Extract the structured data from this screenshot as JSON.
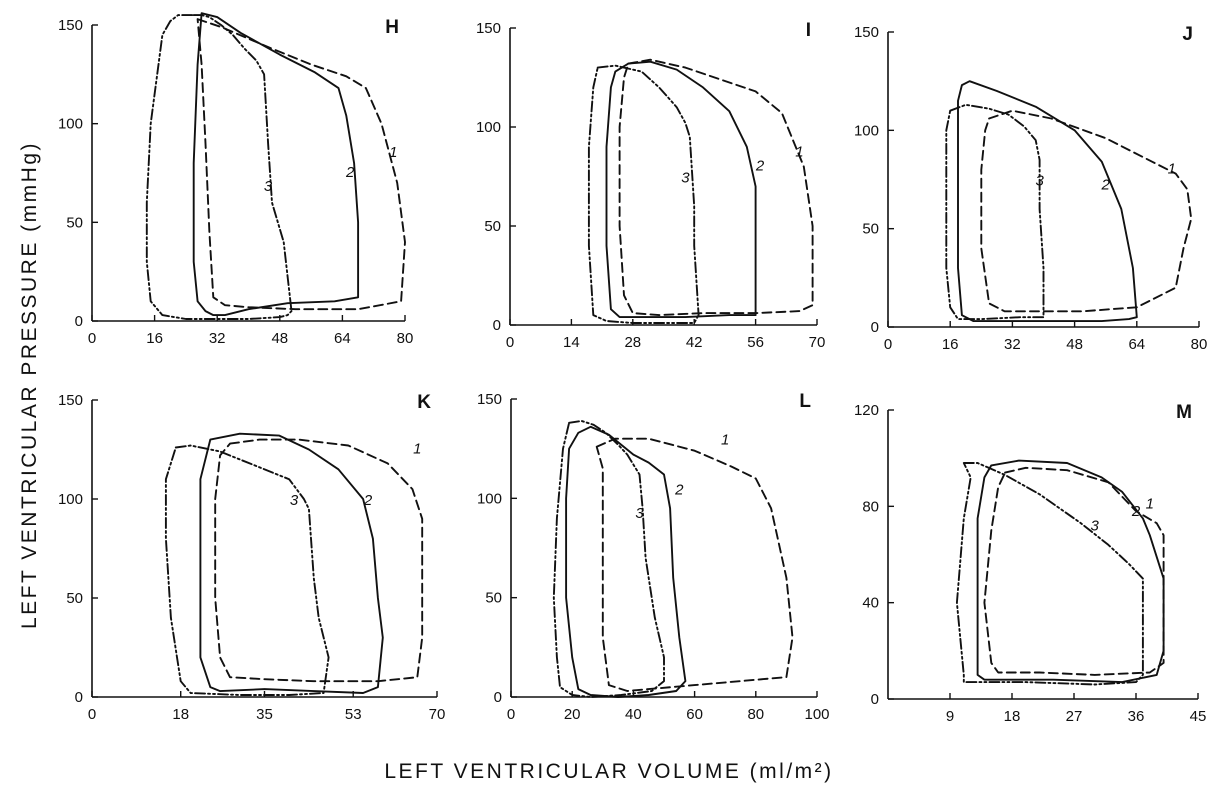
{
  "figure": {
    "ylabel": "LEFT VENTRICULAR PRESSURE (mmHg)",
    "xlabel": "LEFT VENTRICULAR VOLUME (ml/m²)"
  },
  "chart_data": [
    {
      "panel": "H",
      "type": "line",
      "xlim": [
        0,
        80
      ],
      "ylim": [
        0,
        150
      ],
      "xticks": [
        "0",
        "16",
        "32",
        "48",
        "64",
        "80"
      ],
      "yticks": [
        "0",
        "50",
        "100",
        "150"
      ],
      "series": [
        {
          "name": "1",
          "style": "dashed",
          "x": [
            27,
            33,
            46,
            56,
            65,
            70,
            74,
            78,
            80,
            79,
            68,
            52,
            40,
            34,
            31,
            30,
            29,
            28,
            27
          ],
          "y": [
            153,
            149,
            138,
            130,
            124,
            118,
            100,
            70,
            40,
            10,
            6,
            6,
            7,
            8,
            12,
            45,
            90,
            130,
            153
          ]
        },
        {
          "name": "2",
          "style": "solid",
          "x": [
            28,
            32,
            38,
            48,
            57,
            63,
            65,
            67,
            68,
            68,
            62,
            50,
            40,
            34,
            31,
            29,
            27,
            26,
            26,
            27,
            28
          ],
          "y": [
            156,
            154,
            146,
            135,
            126,
            118,
            104,
            80,
            50,
            12,
            10,
            9,
            6,
            3,
            3,
            5,
            10,
            30,
            80,
            130,
            156
          ]
        },
        {
          "name": "3",
          "style": "dashdot",
          "x": [
            26,
            28,
            30,
            33,
            36,
            39,
            42,
            44,
            45,
            46,
            49,
            51,
            50,
            48,
            40,
            32,
            24,
            18,
            15,
            14,
            14,
            15,
            17,
            18,
            20,
            22,
            26
          ],
          "y": [
            155,
            155,
            154,
            150,
            145,
            138,
            132,
            125,
            90,
            60,
            40,
            5,
            3,
            2,
            1,
            1,
            1,
            3,
            10,
            30,
            60,
            100,
            130,
            145,
            152,
            155,
            155
          ]
        }
      ],
      "labels": [
        {
          "text": "1",
          "x": 77,
          "y": 83
        },
        {
          "text": "2",
          "x": 66,
          "y": 73
        },
        {
          "text": "3",
          "x": 45,
          "y": 66
        }
      ]
    },
    {
      "panel": "I",
      "type": "line",
      "xlim": [
        0,
        70
      ],
      "ylim": [
        0,
        150
      ],
      "xticks": [
        "0",
        "14",
        "28",
        "42",
        "56",
        "70"
      ],
      "yticks": [
        "0",
        "50",
        "100",
        "150"
      ],
      "series": [
        {
          "name": "1",
          "style": "dashed",
          "x": [
            27,
            32,
            40,
            48,
            56,
            62,
            67,
            69,
            69,
            66,
            56,
            44,
            34,
            28,
            26,
            25,
            25,
            26,
            27
          ],
          "y": [
            132,
            134,
            130,
            124,
            118,
            107,
            80,
            50,
            10,
            7,
            6,
            6,
            5,
            6,
            15,
            50,
            100,
            125,
            132
          ]
        },
        {
          "name": "2",
          "style": "solid",
          "x": [
            24,
            27,
            32,
            38,
            44,
            50,
            54,
            56,
            56,
            56,
            50,
            40,
            30,
            25,
            23,
            22,
            22,
            23,
            24
          ],
          "y": [
            128,
            132,
            133,
            129,
            120,
            108,
            90,
            70,
            40,
            5,
            5,
            4,
            4,
            4,
            8,
            40,
            90,
            120,
            128
          ]
        },
        {
          "name": "3",
          "style": "dashdot",
          "x": [
            20,
            24,
            30,
            34,
            38,
            40,
            41,
            42,
            42,
            43,
            42,
            38,
            28,
            22,
            19,
            18,
            18,
            19,
            20
          ],
          "y": [
            130,
            131,
            128,
            120,
            110,
            102,
            95,
            60,
            40,
            5,
            1,
            1,
            1,
            2,
            5,
            40,
            90,
            120,
            130
          ]
        }
      ],
      "labels": [
        {
          "text": "1",
          "x": 66,
          "y": 85
        },
        {
          "text": "2",
          "x": 57,
          "y": 78
        },
        {
          "text": "3",
          "x": 40,
          "y": 72
        }
      ]
    },
    {
      "panel": "J",
      "type": "line",
      "xlim": [
        0,
        80
      ],
      "ylim": [
        0,
        150
      ],
      "xticks": [
        "0",
        "16",
        "32",
        "48",
        "64",
        "80"
      ],
      "yticks": [
        "0",
        "50",
        "100",
        "150"
      ],
      "series": [
        {
          "name": "1",
          "style": "dashed",
          "x": [
            26,
            32,
            42,
            56,
            68,
            74,
            77,
            78,
            76,
            74,
            64,
            50,
            38,
            30,
            26,
            24,
            24,
            25,
            26
          ],
          "y": [
            106,
            110,
            106,
            96,
            84,
            78,
            70,
            55,
            40,
            20,
            10,
            8,
            8,
            8,
            12,
            40,
            80,
            100,
            106
          ]
        },
        {
          "name": "2",
          "style": "solid",
          "x": [
            19,
            21,
            28,
            38,
            48,
            55,
            60,
            63,
            64,
            62,
            55,
            40,
            28,
            22,
            19,
            18,
            18,
            18,
            19
          ],
          "y": [
            123,
            125,
            120,
            112,
            100,
            84,
            60,
            30,
            5,
            4,
            3,
            3,
            3,
            3,
            6,
            30,
            80,
            115,
            123
          ]
        },
        {
          "name": "3",
          "style": "dashdot",
          "x": [
            16,
            20,
            26,
            31,
            35,
            38,
            39,
            39,
            40,
            40,
            34,
            24,
            18,
            16,
            15,
            15,
            15,
            16
          ],
          "y": [
            110,
            113,
            111,
            108,
            102,
            95,
            85,
            60,
            30,
            5,
            5,
            4,
            4,
            10,
            30,
            60,
            100,
            110
          ]
        }
      ],
      "labels": [
        {
          "text": "1",
          "x": 73,
          "y": 78
        },
        {
          "text": "2",
          "x": 56,
          "y": 70
        },
        {
          "text": "3",
          "x": 39,
          "y": 72
        }
      ]
    },
    {
      "panel": "K",
      "type": "line",
      "xlim": [
        0,
        70
      ],
      "ylim": [
        0,
        150
      ],
      "xticks": [
        "0",
        "18",
        "35",
        "53",
        "70"
      ],
      "yticks": [
        "0",
        "50",
        "100",
        "150"
      ],
      "series": [
        {
          "name": "1",
          "style": "dashed",
          "x": [
            28,
            34,
            42,
            52,
            60,
            65,
            67,
            67,
            67,
            66,
            58,
            45,
            35,
            28,
            26,
            25,
            25,
            26,
            28
          ],
          "y": [
            128,
            130,
            130,
            127,
            118,
            105,
            90,
            60,
            30,
            10,
            8,
            8,
            9,
            10,
            20,
            50,
            100,
            122,
            128
          ]
        },
        {
          "name": "2",
          "style": "solid",
          "x": [
            24,
            30,
            38,
            44,
            50,
            55,
            57,
            58,
            59,
            58,
            55,
            45,
            35,
            26,
            24,
            22,
            22,
            22,
            24
          ],
          "y": [
            130,
            133,
            132,
            125,
            115,
            100,
            80,
            50,
            30,
            5,
            2,
            3,
            4,
            3,
            5,
            20,
            60,
            110,
            130
          ]
        },
        {
          "name": "3",
          "style": "dashdot",
          "x": [
            17,
            20,
            26,
            32,
            40,
            43,
            44,
            45,
            46,
            48,
            47,
            40,
            30,
            20,
            18,
            16,
            15,
            15,
            17
          ],
          "y": [
            126,
            127,
            124,
            118,
            110,
            100,
            95,
            60,
            40,
            20,
            2,
            1,
            1,
            2,
            8,
            40,
            80,
            110,
            126
          ]
        }
      ],
      "labels": [
        {
          "text": "1",
          "x": 66,
          "y": 123
        },
        {
          "text": "2",
          "x": 56,
          "y": 97
        },
        {
          "text": "3",
          "x": 41,
          "y": 97
        }
      ]
    },
    {
      "panel": "L",
      "type": "line",
      "xlim": [
        0,
        100
      ],
      "ylim": [
        0,
        150
      ],
      "xticks": [
        "0",
        "20",
        "40",
        "60",
        "80",
        "100"
      ],
      "yticks": [
        "0",
        "50",
        "100",
        "150"
      ],
      "series": [
        {
          "name": "1",
          "style": "dashed",
          "x": [
            28,
            34,
            45,
            60,
            72,
            80,
            85,
            90,
            92,
            90,
            75,
            60,
            45,
            38,
            32,
            30,
            30,
            30,
            28
          ],
          "y": [
            126,
            130,
            130,
            124,
            116,
            110,
            95,
            60,
            30,
            10,
            8,
            6,
            4,
            3,
            6,
            30,
            80,
            115,
            126
          ]
        },
        {
          "name": "2",
          "style": "solid",
          "x": [
            22,
            26,
            32,
            40,
            45,
            50,
            52,
            53,
            55,
            57,
            54,
            45,
            35,
            26,
            22,
            20,
            18,
            18,
            19,
            22
          ],
          "y": [
            133,
            136,
            132,
            122,
            118,
            112,
            95,
            60,
            30,
            8,
            3,
            1,
            0,
            1,
            4,
            20,
            50,
            100,
            125,
            133
          ]
        },
        {
          "name": "3",
          "style": "dashdot",
          "x": [
            19,
            23,
            27,
            31,
            35,
            38,
            40,
            42,
            43,
            44,
            47,
            50,
            50,
            46,
            36,
            26,
            20,
            16,
            15,
            14,
            15,
            17,
            19
          ],
          "y": [
            138,
            139,
            137,
            133,
            127,
            122,
            117,
            112,
            95,
            70,
            40,
            20,
            8,
            3,
            1,
            0,
            1,
            5,
            20,
            50,
            90,
            125,
            138
          ]
        }
      ],
      "labels": [
        {
          "text": "1",
          "x": 70,
          "y": 127
        },
        {
          "text": "2",
          "x": 55,
          "y": 102
        },
        {
          "text": "3",
          "x": 42,
          "y": 90
        }
      ]
    },
    {
      "panel": "M",
      "type": "line",
      "xlim": [
        0,
        45
      ],
      "ylim": [
        0,
        120
      ],
      "xticks": [
        "9",
        "18",
        "27",
        "36",
        "45"
      ],
      "yticks": [
        "0",
        "40",
        "80",
        "120"
      ],
      "series": [
        {
          "name": "1",
          "style": "dashed",
          "x": [
            17,
            20,
            26,
            32,
            36,
            39,
            40,
            40,
            40,
            40,
            38,
            30,
            22,
            16,
            15,
            14,
            15,
            16,
            17
          ],
          "y": [
            94,
            96,
            95,
            90,
            78,
            73,
            68,
            50,
            30,
            15,
            11,
            10,
            11,
            11,
            15,
            40,
            70,
            88,
            94
          ]
        },
        {
          "name": "2",
          "style": "solid",
          "x": [
            15,
            19,
            26,
            31,
            34,
            37,
            38,
            40,
            40,
            39,
            34,
            24,
            16,
            14,
            13,
            13,
            13,
            14,
            15
          ],
          "y": [
            97,
            99,
            98,
            92,
            86,
            75,
            68,
            50,
            20,
            10,
            7,
            8,
            8,
            8,
            10,
            40,
            75,
            92,
            97
          ]
        },
        {
          "name": "3",
          "style": "dashdot",
          "x": [
            11,
            13,
            17,
            22,
            28,
            32,
            35,
            37,
            37,
            37,
            36,
            30,
            20,
            11,
            11,
            10,
            11,
            12,
            11
          ],
          "y": [
            98,
            98,
            93,
            85,
            73,
            64,
            56,
            50,
            30,
            10,
            7,
            6,
            7,
            7,
            10,
            40,
            75,
            92,
            98
          ]
        }
      ],
      "labels": [
        {
          "text": "1",
          "x": 38,
          "y": 79
        },
        {
          "text": "2",
          "x": 36,
          "y": 76
        },
        {
          "text": "3",
          "x": 30,
          "y": 70
        }
      ]
    }
  ]
}
